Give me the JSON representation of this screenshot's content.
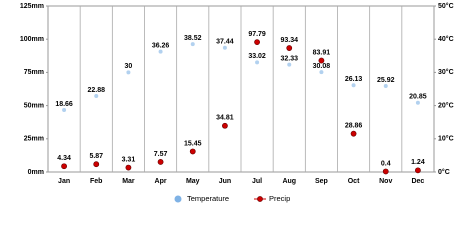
{
  "chart_data": {
    "type": "line",
    "categories": [
      "Jan",
      "Feb",
      "Mar",
      "Apr",
      "May",
      "Jun",
      "Jul",
      "Aug",
      "Sep",
      "Oct",
      "Nov",
      "Dec"
    ],
    "series": [
      {
        "name": "Temperature",
        "color": "#7fb2e5",
        "axis": "y2",
        "values": [
          18.66,
          22.88,
          30,
          36.26,
          38.52,
          37.44,
          33.02,
          32.33,
          30.08,
          26.13,
          25.92,
          20.85
        ]
      },
      {
        "name": "Precip",
        "color": "#cc0000",
        "values": [
          4.34,
          5.87,
          3.31,
          7.57,
          15.45,
          34.81,
          97.79,
          93.34,
          83.91,
          28.86,
          0.4,
          1.24
        ]
      }
    ],
    "ylim": [
      0,
      125
    ],
    "yticks": [
      {
        "value": 0,
        "label": "0mm"
      },
      {
        "value": 25,
        "label": "25mm"
      },
      {
        "value": 50,
        "label": "50mm"
      },
      {
        "value": 75,
        "label": "75mm"
      },
      {
        "value": 100,
        "label": "100mm"
      },
      {
        "value": 125,
        "label": "125mm"
      }
    ],
    "y2lim": [
      0,
      50
    ],
    "y2ticks": [
      {
        "value": 0,
        "label": "0°C"
      },
      {
        "value": 10,
        "label": "10°C"
      },
      {
        "value": 20,
        "label": "20°C"
      },
      {
        "value": 30,
        "label": "30°C"
      },
      {
        "value": 40,
        "label": "40°C"
      },
      {
        "value": 50,
        "label": "50°C"
      }
    ],
    "grid": true
  }
}
